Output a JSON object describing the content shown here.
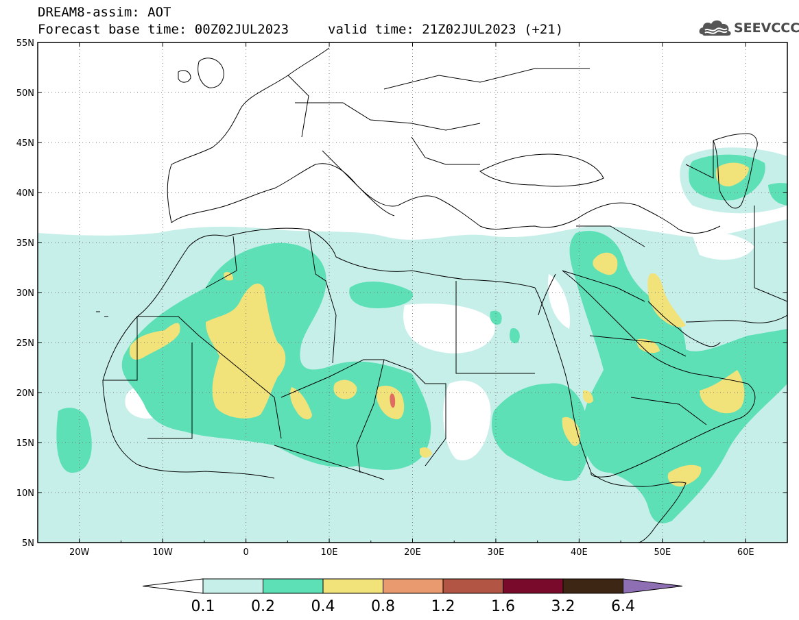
{
  "header": {
    "model_line": "DREAM8-assim: AOT",
    "base_time_line": "Forecast base time: 00Z02JUL2023",
    "valid_time_line": "valid time: 21Z02JUL2023 (+21)"
  },
  "logo": {
    "text": "SEEVCCC",
    "icon": "cloud-logo-icon"
  },
  "map": {
    "lat_labels": [
      "55N",
      "50N",
      "45N",
      "40N",
      "35N",
      "30N",
      "25N",
      "20N",
      "15N",
      "10N",
      "5N"
    ],
    "lon_labels": [
      "20W",
      "10W",
      "0",
      "10E",
      "20E",
      "30E",
      "40E",
      "50E",
      "60E"
    ],
    "lat_range": [
      5,
      55
    ],
    "lon_range": [
      -25,
      65
    ],
    "grid": "dotted"
  },
  "colorbar": {
    "levels": [
      "0.1",
      "0.2",
      "0.4",
      "0.8",
      "1.2",
      "1.6",
      "3.2",
      "6.4"
    ],
    "colors": [
      "#ffffff",
      "#c7efe9",
      "#5ee0b6",
      "#f2e27a",
      "#e99a6e",
      "#b25545",
      "#7a0a2c",
      "#3d2614",
      "#8e6fb3"
    ]
  },
  "palette": {
    "c1": "#c7efe9",
    "c2": "#5ee0b6",
    "c3": "#f2e27a",
    "c4": "#e06d61"
  }
}
